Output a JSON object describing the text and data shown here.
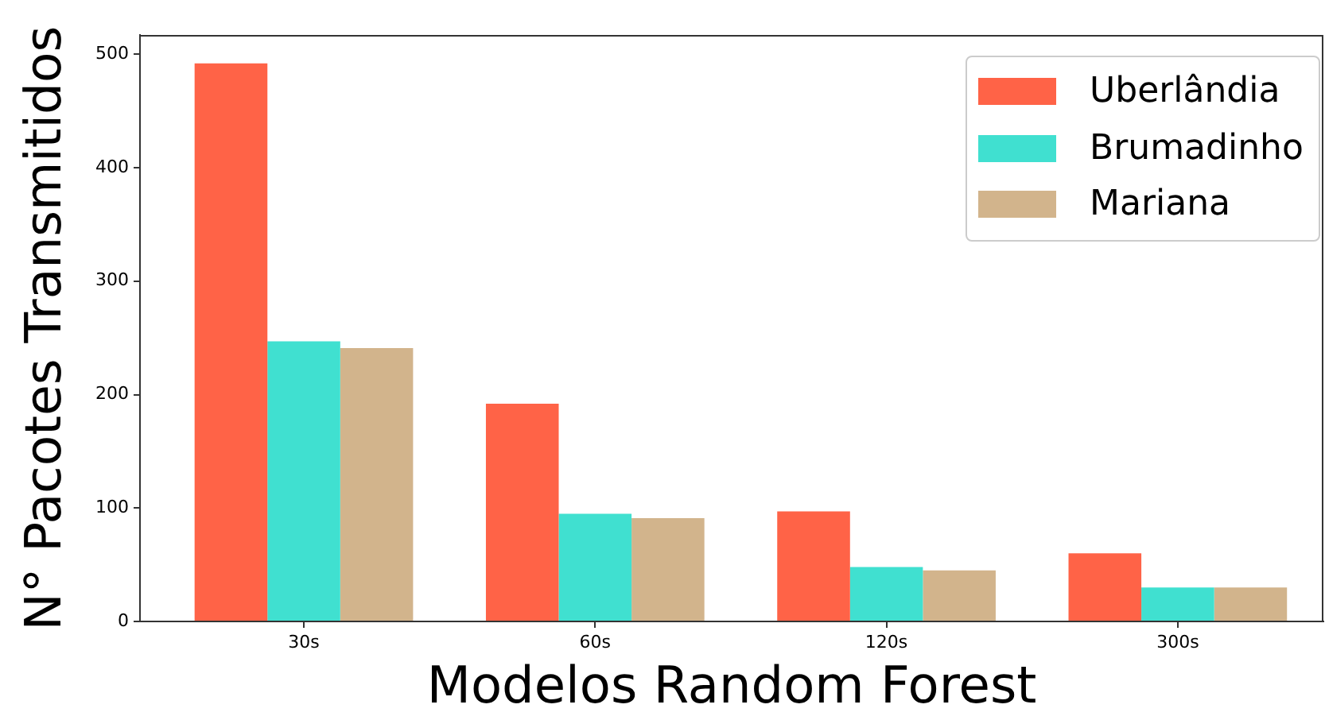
{
  "chart_data": {
    "type": "bar",
    "xlabel": "Modelos Random Forest",
    "ylabel": "N° Pacotes Transmitidos",
    "categories": [
      "30s",
      "60s",
      "120s",
      "300s"
    ],
    "series": [
      {
        "name": "Uberlândia",
        "color": "#ff6347",
        "values": [
          492,
          192,
          97,
          60
        ]
      },
      {
        "name": "Brumadinho",
        "color": "#40e0d0",
        "values": [
          247,
          95,
          48,
          30
        ]
      },
      {
        "name": "Mariana",
        "color": "#d2b48c",
        "values": [
          241,
          91,
          45,
          30
        ]
      }
    ],
    "ylim": [
      0,
      517
    ],
    "yticks": [
      0,
      100,
      200,
      300,
      400,
      500
    ],
    "grid": false,
    "legend": "top right"
  }
}
